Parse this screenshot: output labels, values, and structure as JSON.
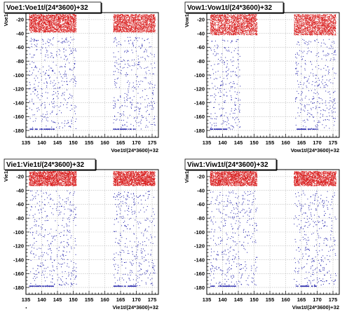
{
  "corner_mark": ".",
  "chart_data": [
    {
      "type": "scatter",
      "title": "Voe1:Voe1t/(24*3600)+32",
      "xlabel": "Voe1t/(24*3600)+32",
      "ylabel": "Voe1",
      "xlim": [
        135,
        177
      ],
      "ylim": [
        -190,
        -10
      ],
      "xticks": [
        135,
        140,
        145,
        150,
        155,
        160,
        165,
        170,
        175
      ],
      "yticks": [
        -20,
        -40,
        -60,
        -80,
        -100,
        -120,
        -140,
        -160,
        -180
      ],
      "grid": true,
      "colors": {
        "upper_band": "#d81b1b",
        "lower_points": "#1a1aa8",
        "grid": "#b8b8b8",
        "frame": "#000000"
      },
      "clusters": [
        {
          "x": [
            136,
            150.9
          ],
          "upper_band": [
            -38,
            -12
          ],
          "lower": [
            -178,
            -45
          ],
          "baseline": -178
        },
        {
          "x": [
            162.6,
            175.9
          ],
          "upper_band": [
            -38,
            -12
          ],
          "lower": [
            -178,
            -45
          ],
          "baseline": -178
        }
      ]
    },
    {
      "type": "scatter",
      "title": "Vow1:Vow1t/(24*3600)+32",
      "xlabel": "Vow1t/(24*3600)+32",
      "ylabel": "Vow1",
      "xlim": [
        135,
        177
      ],
      "ylim": [
        -190,
        -10
      ],
      "xticks": [
        135,
        140,
        145,
        150,
        155,
        160,
        165,
        170,
        175
      ],
      "yticks": [
        -20,
        -40,
        -60,
        -80,
        -100,
        -120,
        -140,
        -160,
        -180
      ],
      "grid": true,
      "colors": {
        "upper_band": "#d81b1b",
        "lower_points": "#1a1aa8",
        "grid": "#b8b8b8",
        "frame": "#000000"
      },
      "clusters": [
        {
          "x": [
            136,
            150.9
          ],
          "upper_band": [
            -42,
            -12
          ],
          "lower": [
            -178,
            -48
          ],
          "baseline": -178,
          "lower_x": [
            136,
            145.5
          ]
        },
        {
          "x": [
            162.6,
            175.9
          ],
          "upper_band": [
            -42,
            -12
          ],
          "lower": [
            -178,
            -48
          ],
          "baseline": -178,
          "lower_x": [
            163,
            175.9
          ]
        }
      ]
    },
    {
      "type": "scatter",
      "title": "Vie1:Vie1t/(24*3600)+32",
      "xlabel": "Vie1t/(24*3600)+32",
      "ylabel": "Vie1",
      "xlim": [
        135,
        177
      ],
      "ylim": [
        -190,
        -10
      ],
      "xticks": [
        135,
        140,
        145,
        150,
        155,
        160,
        165,
        170,
        175
      ],
      "yticks": [
        -20,
        -40,
        -60,
        -80,
        -100,
        -120,
        -140,
        -160,
        -180
      ],
      "grid": true,
      "colors": {
        "upper_band": "#d81b1b",
        "lower_points": "#1a1aa8",
        "grid": "#b8b8b8",
        "frame": "#000000"
      },
      "clusters": [
        {
          "x": [
            136,
            150.9
          ],
          "upper_band": [
            -33,
            -12
          ],
          "lower": [
            -178,
            -40
          ],
          "baseline": -178
        },
        {
          "x": [
            162.6,
            175.9
          ],
          "upper_band": [
            -33,
            -12
          ],
          "lower": [
            -178,
            -40
          ],
          "baseline": -178
        }
      ]
    },
    {
      "type": "scatter",
      "title": "Viw1:Viw1t/(24*3600)+32",
      "xlabel": "Viw1t/(24*3600)+32",
      "ylabel": "Viw1",
      "xlim": [
        135,
        177
      ],
      "ylim": [
        -190,
        -10
      ],
      "xticks": [
        135,
        140,
        145,
        150,
        155,
        160,
        165,
        170,
        175
      ],
      "yticks": [
        -20,
        -40,
        -60,
        -80,
        -100,
        -120,
        -140,
        -160,
        -180
      ],
      "grid": true,
      "colors": {
        "upper_band": "#d81b1b",
        "lower_points": "#1a1aa8",
        "grid": "#b8b8b8",
        "frame": "#000000"
      },
      "clusters": [
        {
          "x": [
            136,
            150.9
          ],
          "upper_band": [
            -33,
            -12
          ],
          "lower": [
            -178,
            -40
          ],
          "baseline": -178
        },
        {
          "x": [
            162.6,
            175.9
          ],
          "upper_band": [
            -33,
            -12
          ],
          "lower": [
            -178,
            -40
          ],
          "baseline": -178
        }
      ]
    }
  ]
}
